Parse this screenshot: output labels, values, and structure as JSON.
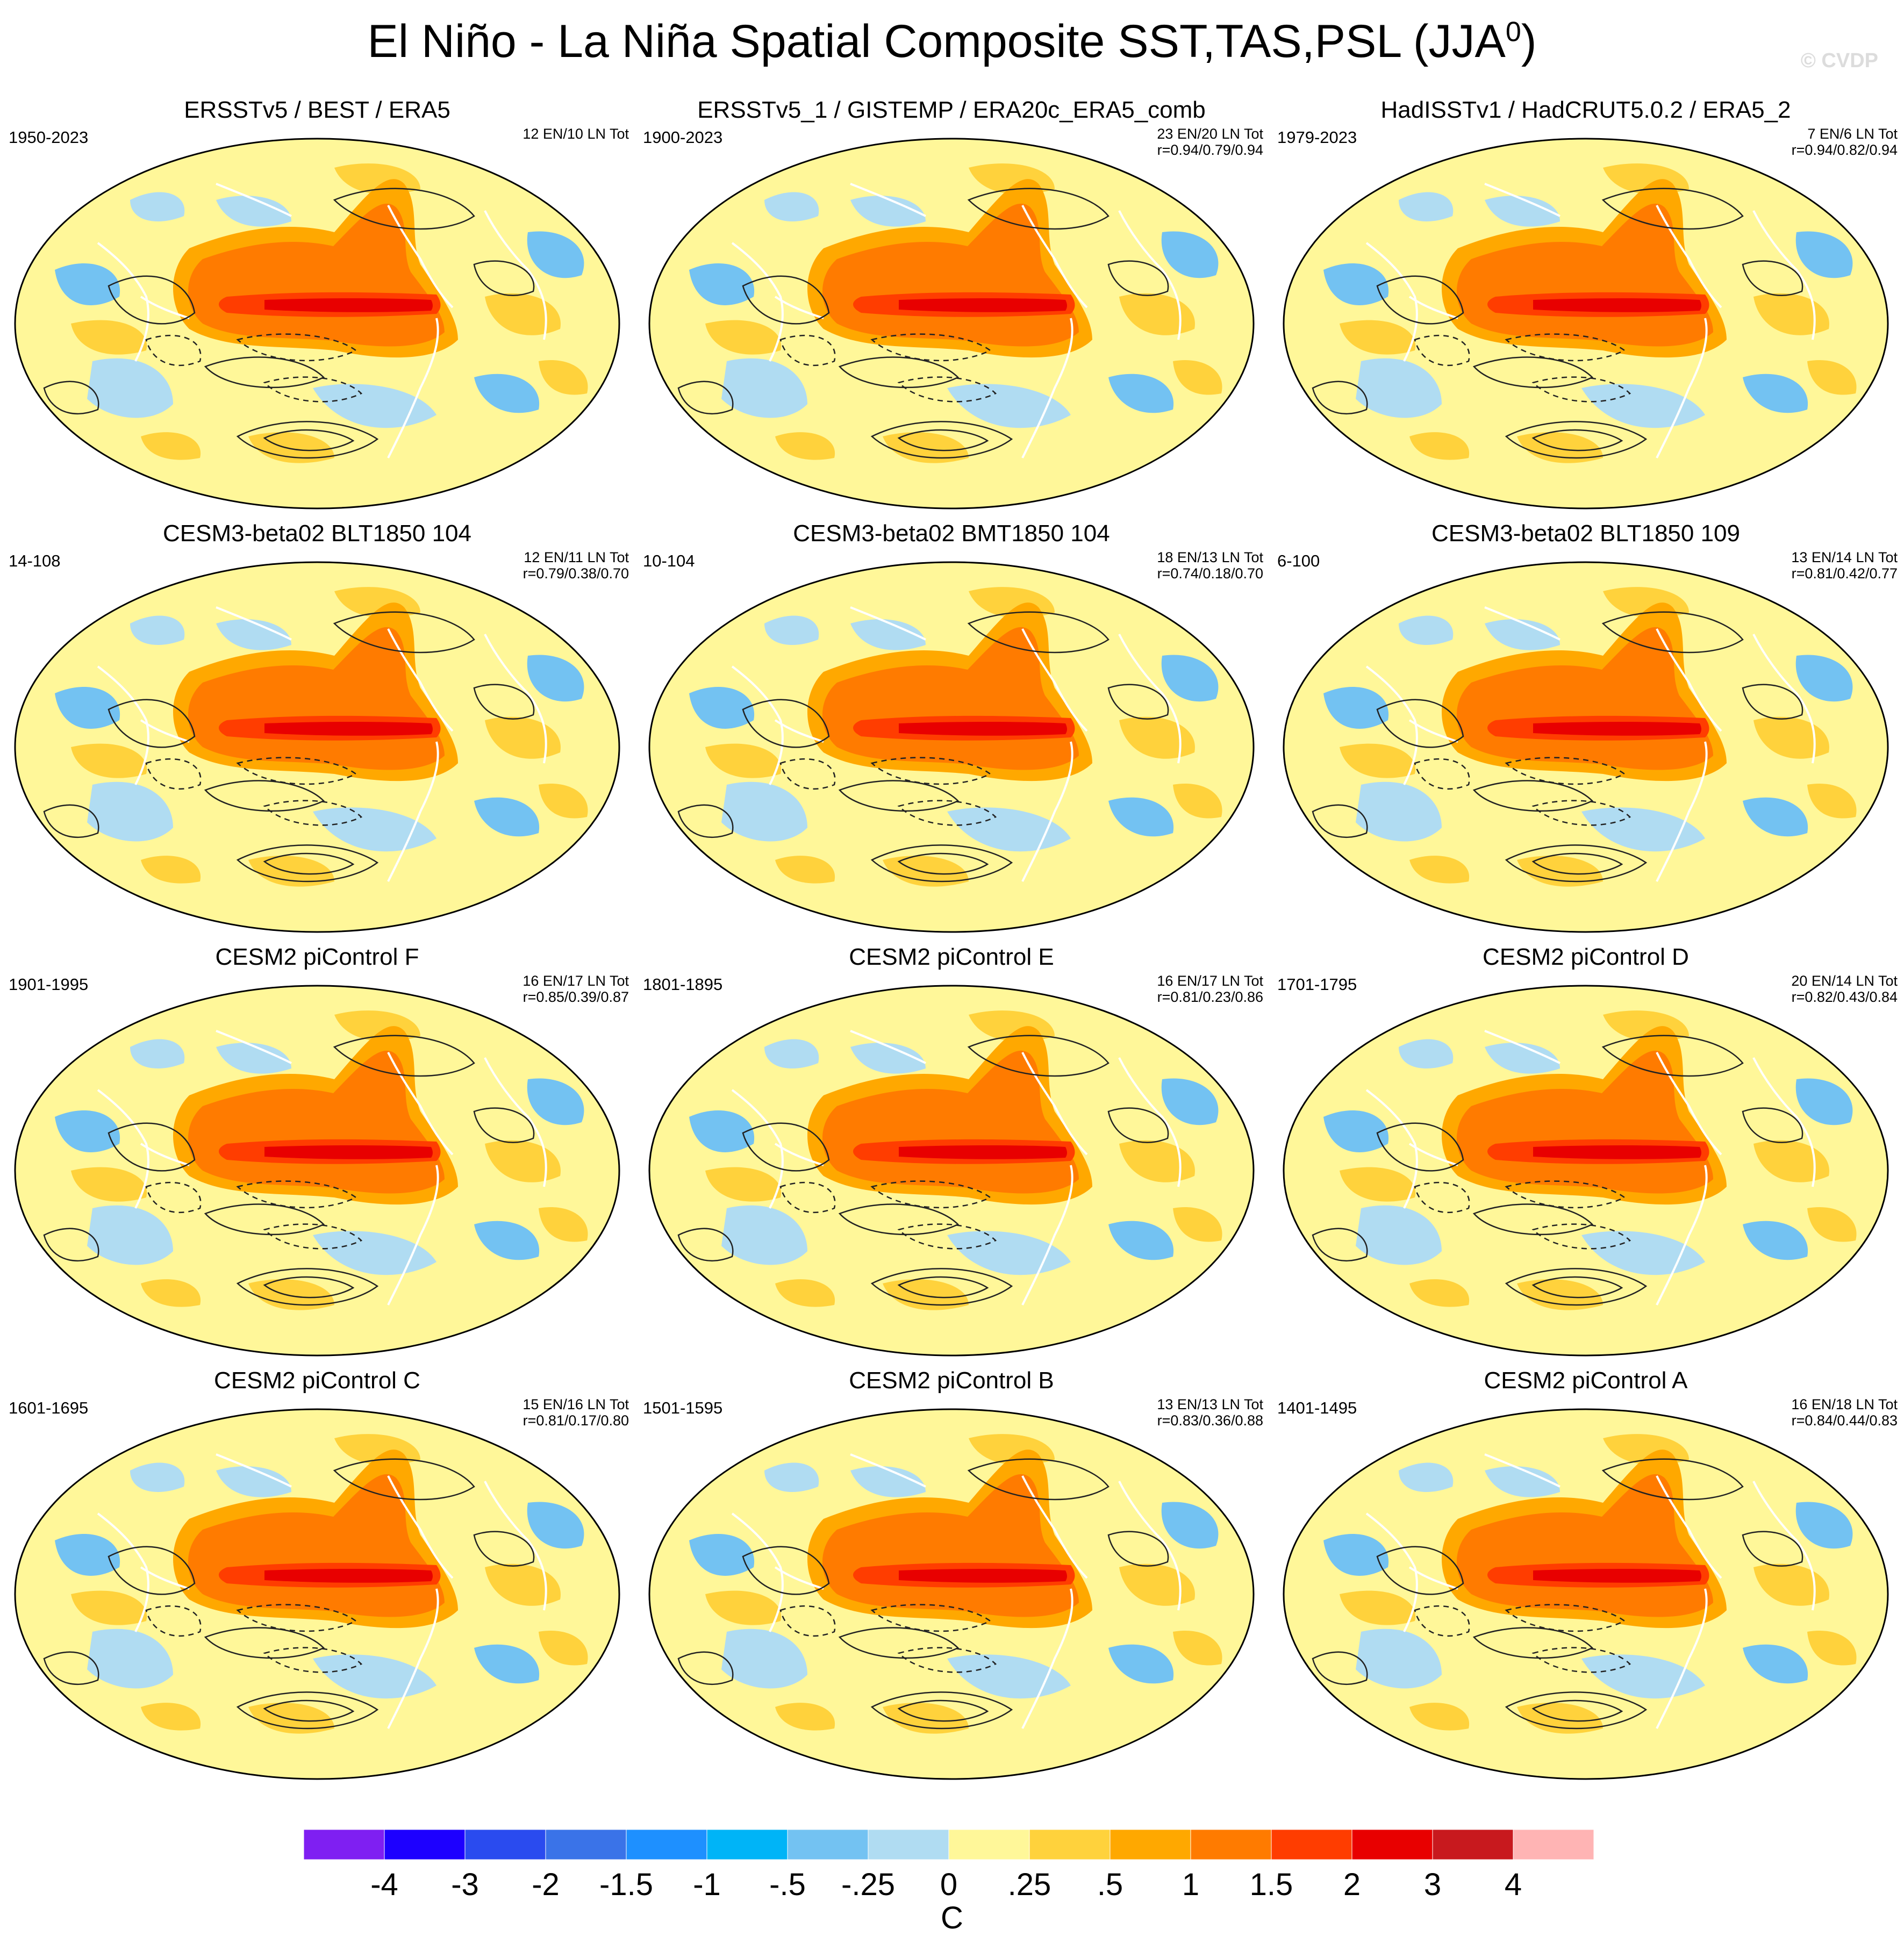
{
  "header": {
    "title": "El Niño - La Niña Spatial Composite SST,TAS,PSL (JJA",
    "title_sup": "0",
    "title_close": ")",
    "watermark": "© CVDP"
  },
  "chart_data": {
    "type": "heatmap",
    "title": "El Niño - La Niña Spatial Composite SST,TAS,PSL (JJA0)",
    "projection": "robinson-like global map",
    "contour_overlay": "PSL (solid positive, dashed negative)",
    "colorbar": {
      "unit": "C",
      "tick_labels": [
        "-4",
        "-3",
        "-2",
        "-1.5",
        "-1",
        "-.5",
        "-.25",
        "0",
        ".25",
        ".5",
        "1",
        "1.5",
        "2",
        "3",
        "4"
      ],
      "levels": [
        -4,
        -3,
        -2,
        -1.5,
        -1,
        -0.5,
        -0.25,
        0,
        0.25,
        0.5,
        1,
        1.5,
        2,
        3,
        4
      ],
      "colors": [
        "#7f1ff2",
        "#1d00ff",
        "#2a4bef",
        "#3a73e8",
        "#1e90ff",
        "#00b4f7",
        "#73c2f2",
        "#b0dcf2",
        "#fff799",
        "#ffd23c",
        "#ffa800",
        "#ff7b00",
        "#ff3d00",
        "#e80000",
        "#c8191e",
        "#ffb4b4"
      ]
    },
    "panels": [
      {
        "title": "ERSSTv5 / BEST / ERA5",
        "years": "1950-2023",
        "counts": "12 EN/10 LN Tot",
        "corr": ""
      },
      {
        "title": "ERSSTv5_1 / GISTEMP / ERA20c_ERA5_comb",
        "years": "1900-2023",
        "counts": "23 EN/20 LN Tot",
        "corr": "r=0.94/0.79/0.94"
      },
      {
        "title": "HadISSTv1 / HadCRUT5.0.2 / ERA5_2",
        "years": "1979-2023",
        "counts": "7 EN/6 LN Tot",
        "corr": "r=0.94/0.82/0.94"
      },
      {
        "title": "CESM3-beta02 BLT1850 104",
        "years": "14-108",
        "counts": "12 EN/11 LN Tot",
        "corr": "r=0.79/0.38/0.70"
      },
      {
        "title": "CESM3-beta02 BMT1850 104",
        "years": "10-104",
        "counts": "18 EN/13 LN Tot",
        "corr": "r=0.74/0.18/0.70"
      },
      {
        "title": "CESM3-beta02 BLT1850 109",
        "years": "6-100",
        "counts": "13 EN/14 LN Tot",
        "corr": "r=0.81/0.42/0.77"
      },
      {
        "title": "CESM2 piControl F",
        "years": "1901-1995",
        "counts": "16 EN/17 LN Tot",
        "corr": "r=0.85/0.39/0.87"
      },
      {
        "title": "CESM2 piControl E",
        "years": "1801-1895",
        "counts": "16 EN/17 LN Tot",
        "corr": "r=0.81/0.23/0.86"
      },
      {
        "title": "CESM2 piControl D",
        "years": "1701-1795",
        "counts": "20 EN/14 LN Tot",
        "corr": "r=0.82/0.43/0.84"
      },
      {
        "title": "CESM2 piControl C",
        "years": "1601-1695",
        "counts": "15 EN/16 LN Tot",
        "corr": "r=0.81/0.17/0.80"
      },
      {
        "title": "CESM2 piControl B",
        "years": "1501-1595",
        "counts": "13 EN/13 LN Tot",
        "corr": "r=0.83/0.36/0.88"
      },
      {
        "title": "CESM2 piControl A",
        "years": "1401-1495",
        "counts": "16 EN/18 LN Tot",
        "corr": "r=0.84/0.44/0.83"
      }
    ]
  }
}
